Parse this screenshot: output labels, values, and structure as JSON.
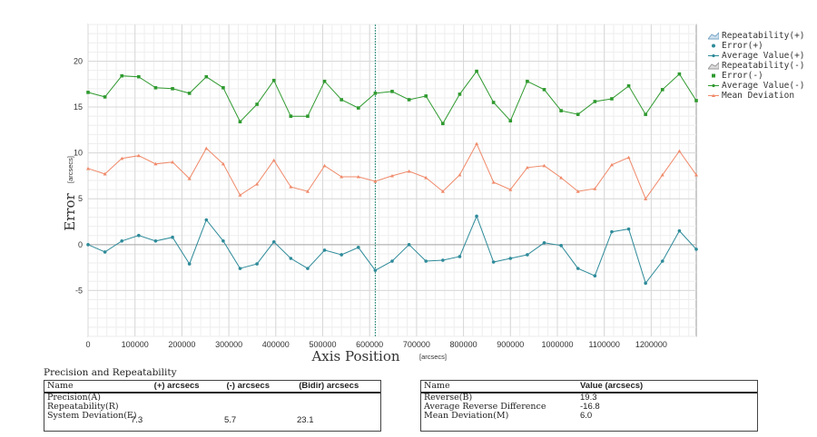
{
  "chart_data": {
    "type": "line",
    "xlabel": "Axis Position",
    "xlabel_unit": "[arcsecs]",
    "ylabel": "Error",
    "ylabel_unit": "[arcsecs]",
    "xlim": [
      0,
      1296000
    ],
    "ylim": [
      -10,
      24
    ],
    "x_ticks": [
      0,
      100000,
      200000,
      300000,
      400000,
      500000,
      600000,
      700000,
      800000,
      900000,
      1000000,
      1100000,
      1200000
    ],
    "y_ticks": [
      -5,
      0,
      5,
      10,
      15,
      20
    ],
    "grid": true,
    "legend_position": "right",
    "marker_x": 612000,
    "x": [
      0,
      36000,
      72000,
      108000,
      144000,
      180000,
      216000,
      252000,
      288000,
      324000,
      360000,
      396000,
      432000,
      468000,
      504000,
      540000,
      576000,
      612000,
      648000,
      684000,
      720000,
      756000,
      792000,
      828000,
      864000,
      900000,
      936000,
      972000,
      1008000,
      1044000,
      1080000,
      1116000,
      1152000,
      1188000,
      1224000,
      1260000,
      1296000
    ],
    "series": [
      {
        "name": "Error(+)",
        "color": "#2e8b9a",
        "marker": "circle",
        "values": [
          0.0,
          -0.8,
          0.4,
          1.0,
          0.4,
          0.8,
          -2.1,
          2.7,
          0.4,
          -2.6,
          -2.1,
          0.3,
          -1.5,
          -2.6,
          -0.6,
          -1.1,
          -0.3,
          -2.8,
          -1.8,
          0.0,
          -1.8,
          -1.7,
          -1.3,
          3.1,
          -1.9,
          -1.5,
          -1.1,
          0.2,
          -0.1,
          -2.6,
          -3.4,
          1.4,
          1.7,
          -4.2,
          -1.8,
          1.5,
          -0.5
        ]
      },
      {
        "name": "Error(-)",
        "color": "#2f9a2f",
        "marker": "square",
        "values": [
          16.6,
          16.1,
          18.4,
          18.3,
          17.1,
          17.0,
          16.5,
          18.3,
          17.1,
          13.4,
          15.3,
          17.9,
          14.0,
          14.0,
          17.8,
          15.8,
          14.9,
          16.5,
          16.7,
          15.8,
          16.2,
          13.2,
          16.4,
          18.9,
          15.5,
          13.5,
          17.8,
          16.9,
          14.6,
          14.2,
          15.6,
          15.9,
          17.3,
          14.2,
          16.9,
          18.6,
          15.7
        ]
      },
      {
        "name": "Mean Deviation",
        "color": "#f08a6a",
        "marker": "triangle",
        "values": [
          8.3,
          7.7,
          9.4,
          9.7,
          8.8,
          9.0,
          7.2,
          10.5,
          8.8,
          5.4,
          6.6,
          9.2,
          6.3,
          5.8,
          8.6,
          7.4,
          7.4,
          6.9,
          7.5,
          8.0,
          7.3,
          5.8,
          7.6,
          11.0,
          6.8,
          6.0,
          8.4,
          8.6,
          7.3,
          5.8,
          6.1,
          8.7,
          9.5,
          5.0,
          7.6,
          10.2,
          7.6
        ]
      }
    ]
  },
  "legend": {
    "items": [
      {
        "label": "Repeatability(+)",
        "symbol": "area",
        "color": "#7aa7c7"
      },
      {
        "label": "Error(+)",
        "symbol": "circle",
        "color": "#2e8b9a"
      },
      {
        "label": "Average Value(+)",
        "symbol": "line-dot",
        "color": "#2e8b9a"
      },
      {
        "label": "Repeatability(-)",
        "symbol": "area",
        "color": "#9a9a9a"
      },
      {
        "label": "Error(-)",
        "symbol": "square",
        "color": "#2f9a2f"
      },
      {
        "label": "Average Value(-)",
        "symbol": "line-dot",
        "color": "#2f9a2f"
      },
      {
        "label": "Mean Deviation",
        "symbol": "line-tri",
        "color": "#f08a6a"
      }
    ]
  },
  "precision_table": {
    "title": "Precision and Repeatability",
    "headers": [
      "Name",
      "(+) arcsecs",
      "(-) arcsecs",
      "(Bidir) arcsecs"
    ],
    "row_labels": [
      "Precision(A)",
      "Repeatability(R)",
      "System Deviation(E)"
    ],
    "values": [
      "7.3",
      "5.7",
      "23.1"
    ]
  },
  "reverse_table": {
    "headers": [
      "Name",
      "Value (arcsecs)"
    ],
    "rows": [
      {
        "label": "Reverse(B)",
        "value": "19.3"
      },
      {
        "label": "Average Reverse Difference",
        "value": "-16.8"
      },
      {
        "label": "Mean Deviation(M)",
        "value": "6.0"
      }
    ]
  }
}
